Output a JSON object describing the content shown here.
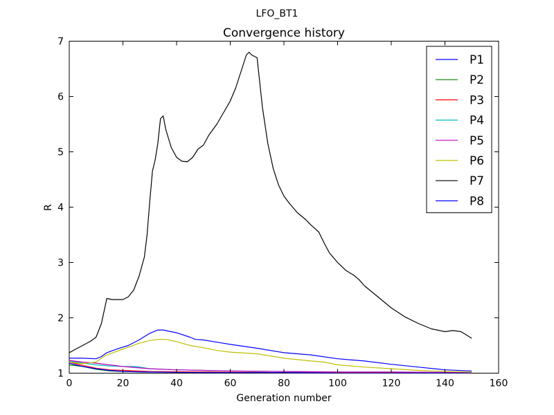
{
  "chart_data": {
    "type": "line",
    "suptitle": "LFO_BT1",
    "title": "Convergence history",
    "xlabel": "Generation number",
    "ylabel": "R",
    "xlim": [
      0,
      160
    ],
    "ylim": [
      1,
      7
    ],
    "xticks": [
      0,
      20,
      40,
      60,
      80,
      100,
      120,
      140,
      160
    ],
    "yticks": [
      1,
      2,
      3,
      4,
      5,
      6,
      7
    ],
    "grid": false,
    "legend_position": "top-right",
    "series": [
      {
        "name": "P1",
        "color": "#0000ff",
        "x": [
          0,
          5,
          10,
          12,
          14,
          18,
          22,
          26,
          30,
          33,
          35,
          40,
          45,
          47,
          50,
          55,
          60,
          70,
          80,
          90,
          100,
          110,
          120,
          130,
          140,
          150
        ],
        "y": [
          1.27,
          1.27,
          1.26,
          1.3,
          1.37,
          1.44,
          1.5,
          1.6,
          1.72,
          1.78,
          1.78,
          1.73,
          1.65,
          1.61,
          1.6,
          1.56,
          1.52,
          1.45,
          1.37,
          1.33,
          1.26,
          1.22,
          1.16,
          1.11,
          1.06,
          1.04
        ]
      },
      {
        "name": "P2",
        "color": "#008000",
        "x": [
          0,
          5,
          10,
          15,
          20,
          30,
          50,
          80,
          100,
          150
        ],
        "y": [
          1.15,
          1.12,
          1.07,
          1.04,
          1.03,
          1.02,
          1.02,
          1.01,
          1.01,
          1.0
        ]
      },
      {
        "name": "P3",
        "color": "#ff0000",
        "x": [
          0,
          5,
          10,
          15,
          20,
          30,
          50,
          80,
          100,
          150
        ],
        "y": [
          1.2,
          1.14,
          1.09,
          1.06,
          1.05,
          1.03,
          1.02,
          1.01,
          1.01,
          1.0
        ]
      },
      {
        "name": "P4",
        "color": "#00bfbf",
        "x": [
          0,
          5,
          10,
          15,
          20,
          25,
          30,
          40,
          50,
          60,
          80,
          100,
          120,
          150
        ],
        "y": [
          1.22,
          1.18,
          1.15,
          1.13,
          1.12,
          1.12,
          1.08,
          1.06,
          1.05,
          1.04,
          1.03,
          1.02,
          1.02,
          1.01
        ]
      },
      {
        "name": "P5",
        "color": "#bf00bf",
        "x": [
          0,
          5,
          10,
          15,
          20,
          30,
          40,
          50,
          60,
          80,
          100,
          120,
          150
        ],
        "y": [
          1.23,
          1.2,
          1.18,
          1.15,
          1.12,
          1.08,
          1.06,
          1.05,
          1.04,
          1.03,
          1.02,
          1.02,
          1.01
        ]
      },
      {
        "name": "P6",
        "color": "#bfbf00",
        "x": [
          0,
          5,
          10,
          12,
          14,
          18,
          22,
          26,
          30,
          33,
          36,
          40,
          45,
          50,
          55,
          60,
          70,
          80,
          90,
          95,
          100,
          110,
          120,
          130,
          140,
          150
        ],
        "y": [
          1.2,
          1.17,
          1.2,
          1.27,
          1.33,
          1.4,
          1.47,
          1.54,
          1.59,
          1.61,
          1.61,
          1.57,
          1.5,
          1.46,
          1.41,
          1.38,
          1.35,
          1.27,
          1.22,
          1.2,
          1.15,
          1.11,
          1.08,
          1.05,
          1.03,
          1.02
        ]
      },
      {
        "name": "P7",
        "color": "#000000",
        "x": [
          0,
          3,
          5,
          8,
          10,
          12,
          14,
          16,
          18,
          20,
          22,
          24,
          26,
          28,
          29,
          30,
          31,
          32,
          33,
          34,
          35,
          36,
          38,
          40,
          42,
          44,
          46,
          48,
          50,
          52,
          55,
          58,
          60,
          62,
          64,
          66,
          67,
          68,
          70,
          72,
          74,
          76,
          78,
          80,
          82,
          85,
          88,
          90,
          93,
          95,
          97,
          100,
          103,
          106,
          108,
          110,
          115,
          120,
          125,
          130,
          135,
          140,
          143,
          146,
          148,
          150
        ],
        "y": [
          1.37,
          1.45,
          1.5,
          1.58,
          1.65,
          1.9,
          2.35,
          2.33,
          2.33,
          2.33,
          2.38,
          2.5,
          2.75,
          3.1,
          3.5,
          4.1,
          4.65,
          4.85,
          5.15,
          5.6,
          5.65,
          5.4,
          5.08,
          4.9,
          4.83,
          4.82,
          4.9,
          5.05,
          5.12,
          5.3,
          5.5,
          5.75,
          5.92,
          6.15,
          6.45,
          6.75,
          6.8,
          6.75,
          6.7,
          5.8,
          5.15,
          4.7,
          4.4,
          4.2,
          4.07,
          3.9,
          3.78,
          3.68,
          3.55,
          3.35,
          3.17,
          3.0,
          2.86,
          2.77,
          2.69,
          2.58,
          2.38,
          2.18,
          2.02,
          1.9,
          1.8,
          1.75,
          1.77,
          1.75,
          1.69,
          1.63
        ]
      },
      {
        "name": "P8",
        "color": "#0000ff",
        "x": [
          0,
          5,
          10,
          15,
          20,
          30,
          50,
          80,
          100,
          150
        ],
        "y": [
          1.18,
          1.12,
          1.08,
          1.05,
          1.03,
          1.02,
          1.01,
          1.01,
          1.0,
          1.0
        ]
      }
    ]
  }
}
